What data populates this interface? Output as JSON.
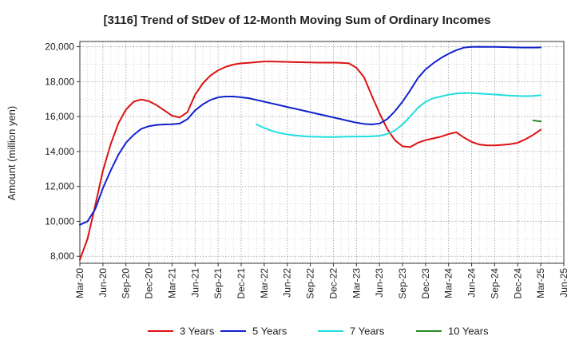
{
  "chart_data": {
    "type": "line",
    "title": "[3116]  Trend of StDev of 12-Month Moving Sum of Ordinary Incomes",
    "xlabel": "",
    "ylabel": "Amount (million yen)",
    "ylim": [
      7600,
      20300
    ],
    "y_ticks": [
      8000,
      10000,
      12000,
      14000,
      16000,
      18000,
      20000
    ],
    "y_tick_labels": [
      "8,000",
      "10,000",
      "12,000",
      "14,000",
      "16,000",
      "18,000",
      "20,000"
    ],
    "x_range": [
      0,
      63
    ],
    "x_ticks": [
      0,
      3,
      6,
      9,
      12,
      15,
      18,
      21,
      24,
      27,
      30,
      33,
      36,
      39,
      42,
      45,
      48,
      51,
      54,
      57,
      60,
      63
    ],
    "x_tick_labels": [
      "Mar-20",
      "Jun-20",
      "Sep-20",
      "Dec-20",
      "Mar-21",
      "Jun-21",
      "Sep-21",
      "Dec-21",
      "Mar-22",
      "Jun-22",
      "Sep-22",
      "Dec-22",
      "Mar-23",
      "Jun-23",
      "Sep-23",
      "Dec-23",
      "Mar-24",
      "Jun-24",
      "Sep-24",
      "Dec-24",
      "Mar-25",
      "Jun-25"
    ],
    "grid": true,
    "legend_position": "bottom",
    "series": [
      {
        "name": "3 Years",
        "color": "#dd1111",
        "x": [
          0,
          1,
          2,
          3,
          4,
          5,
          6,
          7,
          8,
          9,
          10,
          11,
          12,
          13,
          14,
          15,
          16,
          17,
          18,
          19,
          20,
          21,
          22,
          23,
          24,
          25,
          26,
          27,
          28,
          29,
          30,
          31,
          32,
          33,
          34,
          35,
          36,
          37,
          38,
          39,
          40,
          41,
          42,
          43,
          44,
          45,
          46,
          47,
          48,
          49,
          50,
          51,
          52,
          53,
          54,
          55,
          56,
          57,
          58,
          59,
          60
        ],
        "values": [
          7800,
          9000,
          10900,
          12900,
          14400,
          15600,
          16400,
          16850,
          16980,
          16880,
          16650,
          16350,
          16050,
          15950,
          16250,
          17250,
          17900,
          18350,
          18650,
          18850,
          18980,
          19050,
          19080,
          19120,
          19150,
          19150,
          19140,
          19130,
          19120,
          19110,
          19100,
          19090,
          19090,
          19090,
          19080,
          19050,
          18800,
          18250,
          17200,
          16200,
          15300,
          14650,
          14300,
          14250,
          14500,
          14650,
          14750,
          14850,
          15000,
          15100,
          14800,
          14550,
          14400,
          14350,
          14350,
          14380,
          14420,
          14500,
          14700,
          14950,
          15250
        ]
      },
      {
        "name": "5 Years",
        "color": "#1122cc",
        "x": [
          0,
          1,
          2,
          3,
          4,
          5,
          6,
          7,
          8,
          9,
          10,
          11,
          12,
          13,
          14,
          15,
          16,
          17,
          18,
          19,
          20,
          21,
          22,
          23,
          24,
          25,
          26,
          27,
          28,
          29,
          30,
          31,
          32,
          33,
          34,
          35,
          36,
          37,
          38,
          39,
          40,
          41,
          42,
          43,
          44,
          45,
          46,
          47,
          48,
          49,
          50,
          51,
          52,
          53,
          54,
          55,
          56,
          57,
          58,
          59,
          60
        ],
        "values": [
          9800,
          10000,
          10700,
          11900,
          12900,
          13800,
          14500,
          14950,
          15300,
          15450,
          15520,
          15550,
          15560,
          15600,
          15850,
          16350,
          16700,
          16950,
          17100,
          17150,
          17150,
          17100,
          17050,
          16950,
          16850,
          16750,
          16650,
          16550,
          16450,
          16350,
          16250,
          16150,
          16050,
          15950,
          15850,
          15750,
          15650,
          15580,
          15550,
          15600,
          15850,
          16300,
          16850,
          17500,
          18200,
          18700,
          19050,
          19350,
          19600,
          19800,
          19950,
          19990,
          20000,
          19990,
          19990,
          19980,
          19970,
          19960,
          19950,
          19950,
          19960
        ]
      },
      {
        "name": "7 Years",
        "color": "#22dddd",
        "x": [
          23,
          24,
          25,
          26,
          27,
          28,
          29,
          30,
          31,
          32,
          33,
          34,
          35,
          36,
          37,
          38,
          39,
          40,
          41,
          42,
          43,
          44,
          45,
          46,
          47,
          48,
          49,
          50,
          51,
          52,
          53,
          54,
          55,
          56,
          57,
          58,
          59,
          60
        ],
        "values": [
          15550,
          15350,
          15180,
          15060,
          14980,
          14920,
          14880,
          14850,
          14840,
          14830,
          14830,
          14840,
          14850,
          14860,
          14860,
          14870,
          14900,
          15000,
          15200,
          15550,
          16000,
          16500,
          16850,
          17050,
          17150,
          17250,
          17320,
          17350,
          17340,
          17320,
          17290,
          17260,
          17230,
          17200,
          17180,
          17170,
          17180,
          17220
        ]
      },
      {
        "name": "10 Years",
        "color": "#228822",
        "x": [
          59,
          60
        ],
        "values": [
          15780,
          15720
        ]
      }
    ]
  }
}
